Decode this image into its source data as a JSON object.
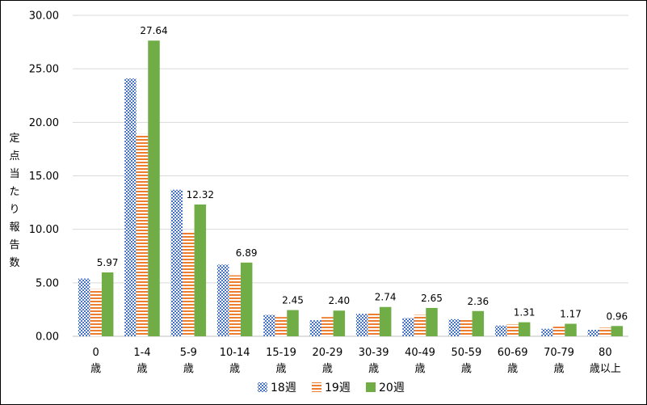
{
  "chart_data": {
    "type": "bar",
    "ylabel": "定点当たり報告数",
    "xlabel": "",
    "ylim": [
      0,
      30
    ],
    "yticks": [
      "0.00",
      "5.00",
      "10.00",
      "15.00",
      "20.00",
      "25.00",
      "30.00"
    ],
    "categories": [
      [
        "0",
        "歳"
      ],
      [
        "1-4",
        "歳"
      ],
      [
        "5-9",
        "歳"
      ],
      [
        "10-14",
        "歳"
      ],
      [
        "15-19",
        "歳"
      ],
      [
        "20-29",
        "歳"
      ],
      [
        "30-39",
        "歳"
      ],
      [
        "40-49",
        "歳"
      ],
      [
        "50-59",
        "歳"
      ],
      [
        "60-69",
        "歳"
      ],
      [
        "70-79",
        "歳"
      ],
      [
        "80",
        "歳以上"
      ]
    ],
    "series": [
      {
        "name": "18週",
        "color": "#4472C4",
        "pattern": "dots",
        "values": [
          5.4,
          24.1,
          13.7,
          6.7,
          2.0,
          1.5,
          2.1,
          1.7,
          1.6,
          1.0,
          0.7,
          0.6
        ]
      },
      {
        "name": "19週",
        "color": "#ED7D31",
        "pattern": "hstripes",
        "values": [
          4.4,
          18.9,
          9.7,
          5.7,
          1.8,
          1.8,
          2.2,
          2.0,
          1.6,
          1.1,
          0.9,
          0.8
        ]
      },
      {
        "name": "20週",
        "color": "#70AD47",
        "pattern": "solid",
        "values": [
          5.97,
          27.64,
          12.32,
          6.89,
          2.45,
          2.4,
          2.74,
          2.65,
          2.36,
          1.31,
          1.17,
          0.96
        ],
        "labels": [
          "5.97",
          "27.64",
          "12.32",
          "6.89",
          "2.45",
          "2.40",
          "2.74",
          "2.65",
          "2.36",
          "1.31",
          "1.17",
          "0.96"
        ]
      }
    ],
    "grid": true,
    "legend": "bottom"
  }
}
